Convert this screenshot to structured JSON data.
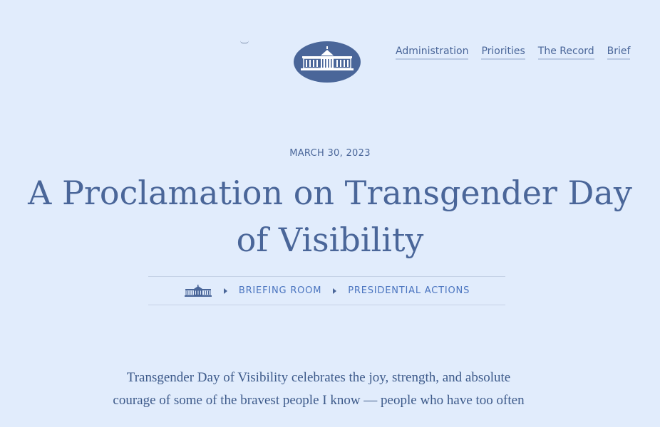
{
  "header": {
    "logo_icon": "white-house-seal-icon",
    "nav": [
      {
        "label": "Administration"
      },
      {
        "label": "Priorities"
      },
      {
        "label": "The Record"
      },
      {
        "label": "Brief"
      }
    ]
  },
  "article": {
    "date": "MARCH 30, 2023",
    "title_line1": "A Proclamation on Transgender Day",
    "title_line2": "of Visibility",
    "breadcrumb": {
      "home_icon": "white-house-icon",
      "items": [
        {
          "label": "BRIEFING ROOM"
        },
        {
          "label": "PRESIDENTIAL ACTIONS"
        }
      ]
    },
    "lede": {
      "line1": "Transgender Day of Visibility celebrates the joy, strength, and absolute",
      "line2": "courage of some of the bravest people I know — people who have too often"
    }
  },
  "colors": {
    "background": "#e1ecfc",
    "primary": "#4a6699",
    "link": "#4a74bf"
  }
}
